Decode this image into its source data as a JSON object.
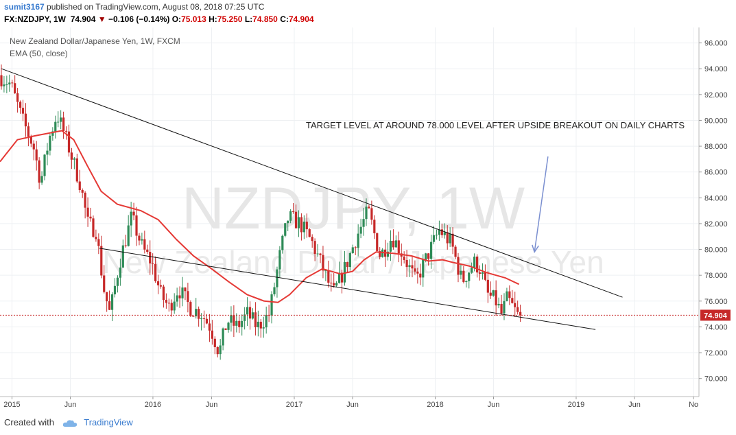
{
  "header": {
    "user": "sumit3167",
    "published_text": " published on TradingView.com, August 08, 2018 07:25 UTC",
    "symbol": "FX:NZDJPY, 1W",
    "last": "74.904",
    "change": "−0.106 (−0.14%)",
    "o_label": "O:",
    "o_value": "75.013",
    "h_label": "H:",
    "h_value": "75.250",
    "l_label": "L:",
    "l_value": "74.850",
    "c_label": "C:",
    "c_value": "74.904"
  },
  "legend": {
    "title": "New Zealand Dollar/Japanese Yen, 1W, FXCM",
    "indicator": "EMA (50, close)"
  },
  "watermark": {
    "line1": "NZDJPY, 1W",
    "line2": "New Zealand Dollar / Japanese Yen"
  },
  "annotation": "TARGET LEVEL AT AROUND 78.000 LEVEL AFTER UPSIDE BREAKOUT ON DAILY CHARTS",
  "price_tag": "74.904",
  "footer": {
    "created_with": "Created with",
    "brand": "TradingView"
  },
  "colors": {
    "up": "#2e8b57",
    "down": "#c62828",
    "ema": "#e53935",
    "arrow": "#7a8fd0",
    "last_line": "#c62828"
  },
  "chart_data": {
    "type": "candlestick",
    "x_range": [
      "2014-12-01",
      "2019-11-15"
    ],
    "ylim": [
      68.6,
      97.2
    ],
    "y_ticks": [
      "70.000",
      "72.000",
      "74.000",
      "76.000",
      "78.000",
      "80.000",
      "82.000",
      "84.000",
      "86.000",
      "88.000",
      "90.000",
      "92.000",
      "94.000",
      "96.000"
    ],
    "x_ticks": [
      {
        "date": "2015-01-01",
        "label": "2015"
      },
      {
        "date": "2015-06-01",
        "label": "Jun"
      },
      {
        "date": "2016-01-01",
        "label": "2016"
      },
      {
        "date": "2016-06-01",
        "label": "Jun"
      },
      {
        "date": "2017-01-01",
        "label": "2017"
      },
      {
        "date": "2017-06-01",
        "label": "Jun"
      },
      {
        "date": "2018-01-01",
        "label": "2018"
      },
      {
        "date": "2018-06-01",
        "label": "Jun"
      },
      {
        "date": "2019-01-01",
        "label": "2019"
      },
      {
        "date": "2019-06-01",
        "label": "Jun"
      },
      {
        "date": "2019-11-01",
        "label": "No"
      }
    ],
    "last_price": 74.904,
    "price_path": [
      [
        "2014-12-01",
        93.5
      ],
      [
        "2015-01-01",
        92.8
      ],
      [
        "2015-02-01",
        90.0
      ],
      [
        "2015-03-01",
        88.0
      ],
      [
        "2015-03-20",
        85.2
      ],
      [
        "2015-04-10",
        88.5
      ],
      [
        "2015-05-01",
        90.5
      ],
      [
        "2015-05-20",
        89.0
      ],
      [
        "2015-06-10",
        87.0
      ],
      [
        "2015-07-01",
        85.0
      ],
      [
        "2015-07-20",
        82.0
      ],
      [
        "2015-08-10",
        81.5
      ],
      [
        "2015-08-30",
        77.0
      ],
      [
        "2015-09-15",
        75.0
      ],
      [
        "2015-10-10",
        79.0
      ],
      [
        "2015-11-10",
        82.5
      ],
      [
        "2015-12-10",
        80.0
      ],
      [
        "2016-01-01",
        79.0
      ],
      [
        "2016-01-25",
        76.5
      ],
      [
        "2016-02-15",
        75.5
      ],
      [
        "2016-03-10",
        77.0
      ],
      [
        "2016-04-10",
        75.5
      ],
      [
        "2016-05-10",
        75.0
      ],
      [
        "2016-06-01",
        74.0
      ],
      [
        "2016-06-24",
        72.0
      ],
      [
        "2016-07-15",
        74.5
      ],
      [
        "2016-08-10",
        74.0
      ],
      [
        "2016-09-05",
        75.0
      ],
      [
        "2016-10-01",
        74.0
      ],
      [
        "2016-11-01",
        75.0
      ],
      [
        "2016-12-01",
        80.0
      ],
      [
        "2016-12-20",
        82.5
      ],
      [
        "2017-01-20",
        82.0
      ],
      [
        "2017-02-20",
        80.5
      ],
      [
        "2017-03-20",
        78.5
      ],
      [
        "2017-04-15",
        76.5
      ],
      [
        "2017-05-15",
        78.5
      ],
      [
        "2017-06-15",
        81.0
      ],
      [
        "2017-07-15",
        83.0
      ],
      [
        "2017-08-15",
        79.5
      ],
      [
        "2017-09-15",
        81.0
      ],
      [
        "2017-10-15",
        79.5
      ],
      [
        "2017-11-15",
        77.5
      ],
      [
        "2017-12-15",
        79.5
      ],
      [
        "2018-01-15",
        81.5
      ],
      [
        "2018-02-15",
        80.5
      ],
      [
        "2018-03-15",
        77.5
      ],
      [
        "2018-04-15",
        79.0
      ],
      [
        "2018-05-01",
        78.5
      ],
      [
        "2018-05-20",
        76.5
      ],
      [
        "2018-06-10",
        76.0
      ],
      [
        "2018-06-25",
        75.0
      ],
      [
        "2018-07-10",
        76.2
      ],
      [
        "2018-08-06",
        74.904
      ]
    ],
    "series": [
      {
        "name": "EMA (50, close)",
        "type": "line",
        "points": [
          [
            "2014-12-01",
            86.8
          ],
          [
            "2015-01-15",
            88.5
          ],
          [
            "2015-03-01",
            88.8
          ],
          [
            "2015-05-10",
            89.2
          ],
          [
            "2015-06-10",
            88.5
          ],
          [
            "2015-07-15",
            86.5
          ],
          [
            "2015-08-20",
            84.5
          ],
          [
            "2015-10-01",
            83.5
          ],
          [
            "2015-12-01",
            83.0
          ],
          [
            "2016-01-15",
            82.3
          ],
          [
            "2016-03-01",
            80.8
          ],
          [
            "2016-04-15",
            79.5
          ],
          [
            "2016-06-01",
            78.5
          ],
          [
            "2016-07-15",
            77.5
          ],
          [
            "2016-09-01",
            76.5
          ],
          [
            "2016-10-15",
            76.0
          ],
          [
            "2016-11-20",
            75.9
          ],
          [
            "2016-12-20",
            76.5
          ],
          [
            "2017-02-01",
            77.8
          ],
          [
            "2017-03-15",
            78.5
          ],
          [
            "2017-05-01",
            78.1
          ],
          [
            "2017-06-01",
            78.3
          ],
          [
            "2017-07-01",
            79.2
          ],
          [
            "2017-08-01",
            79.8
          ],
          [
            "2017-09-15",
            79.7
          ],
          [
            "2017-11-01",
            79.5
          ],
          [
            "2017-12-15",
            79.1
          ],
          [
            "2018-01-20",
            79.2
          ],
          [
            "2018-02-15",
            79.0
          ],
          [
            "2018-04-01",
            78.7
          ],
          [
            "2018-05-15",
            78.2
          ],
          [
            "2018-07-01",
            77.8
          ],
          [
            "2018-08-06",
            77.3
          ]
        ]
      },
      {
        "name": "",
        "type": "trendline",
        "points": [
          [
            "2014-12-05",
            94.0
          ],
          [
            "2019-05-01",
            76.3
          ]
        ]
      },
      {
        "name": "",
        "type": "trendline",
        "points": [
          [
            "2015-08-15",
            80.1
          ],
          [
            "2019-02-20",
            73.8
          ]
        ]
      }
    ],
    "arrow": {
      "from": [
        "2018-10-20",
        87.2
      ],
      "to": [
        "2018-09-15",
        79.8
      ]
    },
    "annotation_position": "top-right"
  }
}
